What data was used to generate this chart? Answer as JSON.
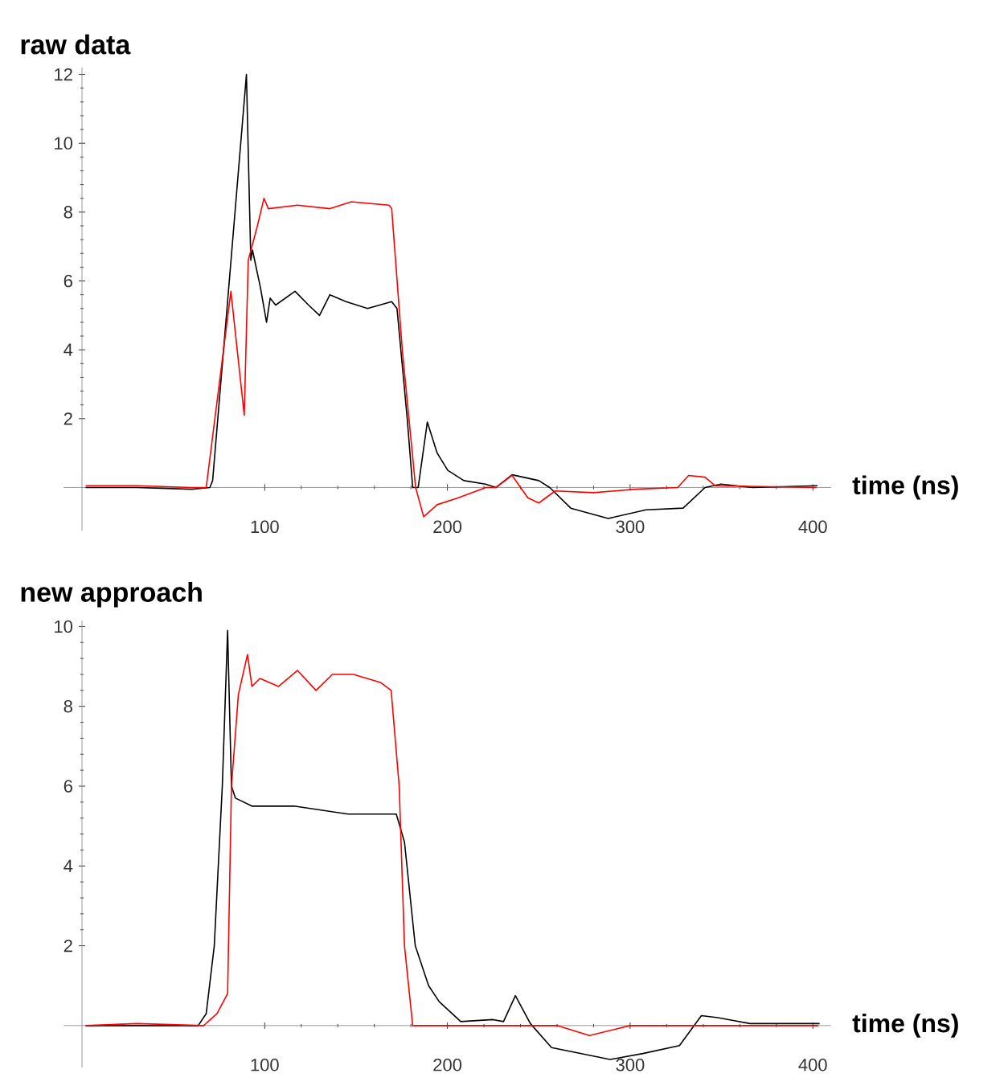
{
  "chart_data": [
    {
      "type": "line",
      "title": "raw data",
      "xlabel": "time (ns)",
      "xlim": [
        -10,
        410
      ],
      "ylim": [
        -1.25,
        12.2
      ],
      "xticks": [
        100,
        200,
        300,
        400
      ],
      "yticks": [
        2,
        4,
        6,
        8,
        10,
        12
      ],
      "series": [
        {
          "color": "#000000",
          "x": [
            2,
            30,
            60,
            70,
            71.5,
            80,
            90,
            92.4,
            93.3,
            97.7,
            101,
            103,
            106,
            116.6,
            124,
            130,
            135.7,
            144.5,
            156.3,
            169.5,
            172.4,
            178,
            181,
            184,
            189,
            194.4,
            200.2,
            209,
            220.8,
            226.6,
            235.4,
            250,
            256,
            267.5,
            288,
            308.7,
            329,
            341,
            349.8,
            367,
            402.5
          ],
          "values": [
            0,
            0,
            -0.05,
            0,
            0.2,
            5.6,
            12,
            6.6,
            6.9,
            5.8,
            4.8,
            5.5,
            5.3,
            5.7,
            5.3,
            5.0,
            5.6,
            5.4,
            5.2,
            5.4,
            5.2,
            2,
            0,
            0,
            1.9,
            1.0,
            0.5,
            0.2,
            0.1,
            0,
            0.37,
            0.2,
            0,
            -0.6,
            -0.9,
            -0.65,
            -0.6,
            0,
            0.1,
            0,
            0.05
          ]
        },
        {
          "color": "#ff0000",
          "x": [
            2,
            30,
            60,
            68,
            81.5,
            88.8,
            91,
            96,
            99.6,
            102,
            118,
            135.7,
            147.4,
            168,
            169.5,
            175.3,
            182.6,
            187,
            194.4,
            206,
            221,
            226.6,
            235.4,
            244,
            250,
            259,
            280,
            302.8,
            326,
            332,
            341,
            346.6,
            402
          ],
          "values": [
            0.05,
            0.05,
            0,
            0,
            5.7,
            2.1,
            6.6,
            7.6,
            8.4,
            8.1,
            8.2,
            8.1,
            8.3,
            8.2,
            8.1,
            4,
            0,
            -0.85,
            -0.5,
            -0.3,
            0,
            0,
            0.35,
            -0.3,
            -0.45,
            -0.1,
            -0.15,
            -0.05,
            0,
            0.35,
            0.3,
            0.05,
            0
          ]
        }
      ]
    },
    {
      "type": "line",
      "title": "new approach",
      "xlabel": "time (ns)",
      "xlim": [
        -10,
        410
      ],
      "ylim": [
        -1.05,
        10.15
      ],
      "xticks": [
        100,
        200,
        300,
        400
      ],
      "yticks": [
        2,
        4,
        6,
        8,
        10
      ],
      "series": [
        {
          "color": "#000000",
          "x": [
            2,
            30,
            63.6,
            68,
            72.4,
            76.8,
            79.7,
            81.8,
            84,
            93,
            116,
            145.6,
            172,
            176.5,
            182.4,
            189.7,
            195.5,
            207.3,
            225,
            230.7,
            237.2,
            245.4,
            257,
            289,
            307,
            327,
            339,
            348,
            365.6,
            403.7
          ],
          "values": [
            0,
            0,
            0,
            0.3,
            2,
            6,
            9.9,
            6,
            5.7,
            5.5,
            5.5,
            5.3,
            5.3,
            4.6,
            2,
            1,
            0.6,
            0.1,
            0.15,
            0.1,
            0.75,
            0.05,
            -0.55,
            -0.85,
            -0.7,
            -0.5,
            0.25,
            0.2,
            0.05,
            0.05
          ]
        },
        {
          "color": "#ff0000",
          "x": [
            2,
            30,
            66.6,
            73.9,
            79.7,
            81.8,
            85.6,
            90.6,
            93,
            97.4,
            107.6,
            117.9,
            128.1,
            137,
            148.6,
            163.3,
            169.2,
            173.6,
            176.5,
            181,
            230,
            260,
            277.7,
            300,
            350,
            403
          ],
          "values": [
            0,
            0.05,
            0,
            0.3,
            0.8,
            6,
            8.3,
            9.3,
            8.5,
            8.7,
            8.5,
            8.9,
            8.4,
            8.8,
            8.8,
            8.6,
            8.4,
            6,
            2,
            0,
            0,
            0,
            -0.25,
            0,
            0,
            0
          ]
        }
      ]
    }
  ]
}
